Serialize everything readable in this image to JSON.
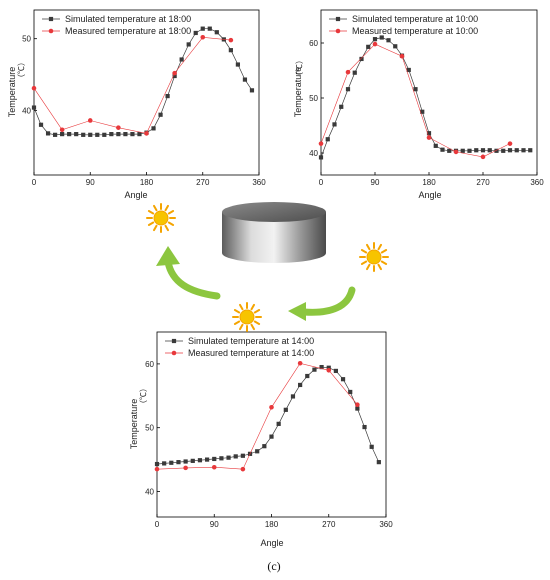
{
  "caption": "(c)",
  "colors": {
    "simulated": "#3a3a3a",
    "measured": "#e8383b",
    "arrow": "#8cc63f",
    "sun_core": "#f7c400",
    "sun_ray": "#f4a400",
    "axis": "#000000"
  },
  "icons": [
    "sun-icon",
    "cylinder-object",
    "curved-arrow"
  ],
  "chart_data": [
    {
      "type": "scatter",
      "id": "18:00",
      "xlabel": "Angle",
      "ylabel": "Temperature",
      "yunit": "（℃）",
      "xlim": [
        0,
        360
      ],
      "ylim": [
        31,
        54
      ],
      "xticks": [
        "0",
        "90",
        "180",
        "270",
        "360"
      ],
      "yticks": [
        "40",
        "50"
      ],
      "legend_position": "top-left",
      "series": [
        {
          "name": "Simulated temperature at 18:00",
          "marker": "square",
          "x": [
            0,
            11.25,
            22.5,
            33.75,
            45,
            56.25,
            67.5,
            78.75,
            90,
            101.25,
            112.5,
            123.75,
            135,
            146.25,
            157.5,
            168.75,
            180,
            191.25,
            202.5,
            213.75,
            225,
            236.25,
            247.5,
            258.75,
            270,
            281.25,
            292.5,
            303.75,
            315,
            326.25,
            337.5,
            348.75
          ],
          "values": [
            40.4,
            38.0,
            36.8,
            36.6,
            36.7,
            36.7,
            36.7,
            36.6,
            36.6,
            36.6,
            36.6,
            36.7,
            36.7,
            36.7,
            36.7,
            36.7,
            36.9,
            37.5,
            39.4,
            42.0,
            44.8,
            47.1,
            49.2,
            50.8,
            51.4,
            51.4,
            50.9,
            49.9,
            48.4,
            46.4,
            44.3,
            42.8
          ]
        },
        {
          "name": "Measured temperature at 18:00",
          "marker": "circle",
          "x": [
            0,
            45,
            90,
            135,
            180,
            225,
            270,
            315
          ],
          "values": [
            43.1,
            37.3,
            38.6,
            37.6,
            36.8,
            45.2,
            50.2,
            49.8
          ]
        }
      ]
    },
    {
      "type": "scatter",
      "id": "10:00",
      "xlabel": "Angle",
      "ylabel": "Temperature",
      "yunit": "（℃）",
      "xlim": [
        0,
        360
      ],
      "ylim": [
        36,
        66
      ],
      "xticks": [
        "0",
        "90",
        "180",
        "270",
        "360"
      ],
      "yticks": [
        "40",
        "50",
        "60"
      ],
      "legend_position": "top-left",
      "series": [
        {
          "name": "Simulated temperature at 10:00",
          "marker": "square",
          "x": [
            0,
            11.25,
            22.5,
            33.75,
            45,
            56.25,
            67.5,
            78.75,
            90,
            101.25,
            112.5,
            123.75,
            135,
            146.25,
            157.5,
            168.75,
            180,
            191.25,
            202.5,
            213.75,
            225,
            236.25,
            247.5,
            258.75,
            270,
            281.25,
            292.5,
            303.75,
            315,
            326.25,
            337.5,
            348.75
          ],
          "values": [
            39.2,
            42.5,
            45.2,
            48.4,
            51.6,
            54.6,
            57.1,
            59.3,
            60.7,
            61.0,
            60.5,
            59.4,
            57.7,
            55.1,
            51.6,
            47.5,
            43.6,
            41.3,
            40.6,
            40.4,
            40.4,
            40.4,
            40.4,
            40.5,
            40.5,
            40.5,
            40.4,
            40.4,
            40.5,
            40.5,
            40.5,
            40.5
          ]
        },
        {
          "name": "Measured temperature at 10:00",
          "marker": "circle",
          "x": [
            0,
            45,
            90,
            135,
            180,
            225,
            270,
            315
          ],
          "values": [
            41.7,
            54.7,
            59.8,
            57.6,
            42.8,
            40.2,
            39.3,
            41.7
          ]
        }
      ]
    },
    {
      "type": "scatter",
      "id": "14:00",
      "xlabel": "Angle",
      "ylabel": "Temperature",
      "yunit": "（℃）",
      "xlim": [
        0,
        360
      ],
      "ylim": [
        36,
        65
      ],
      "xticks": [
        "0",
        "90",
        "180",
        "270",
        "360"
      ],
      "yticks": [
        "40",
        "50",
        "60"
      ],
      "legend_position": "top-left",
      "series": [
        {
          "name": "Simulated temperature at 14:00",
          "marker": "square",
          "x": [
            0,
            11.25,
            22.5,
            33.75,
            45,
            56.25,
            67.5,
            78.75,
            90,
            101.25,
            112.5,
            123.75,
            135,
            146.25,
            157.5,
            168.75,
            180,
            191.25,
            202.5,
            213.75,
            225,
            236.25,
            247.5,
            258.75,
            270,
            281.25,
            292.5,
            303.75,
            315,
            326.25,
            337.5,
            348.75
          ],
          "values": [
            44.3,
            44.4,
            44.5,
            44.6,
            44.7,
            44.8,
            44.9,
            45.0,
            45.1,
            45.2,
            45.3,
            45.5,
            45.6,
            45.9,
            46.3,
            47.1,
            48.6,
            50.6,
            52.8,
            54.9,
            56.7,
            58.1,
            59.1,
            59.5,
            59.4,
            58.9,
            57.6,
            55.6,
            53.0,
            50.1,
            47.0,
            44.6
          ]
        },
        {
          "name": "Measured temperature at 14:00",
          "marker": "circle",
          "x": [
            0,
            45,
            90,
            135,
            180,
            225,
            270,
            315
          ],
          "values": [
            43.5,
            43.7,
            43.8,
            43.5,
            53.2,
            60.1,
            59.0,
            53.6
          ]
        }
      ]
    }
  ]
}
